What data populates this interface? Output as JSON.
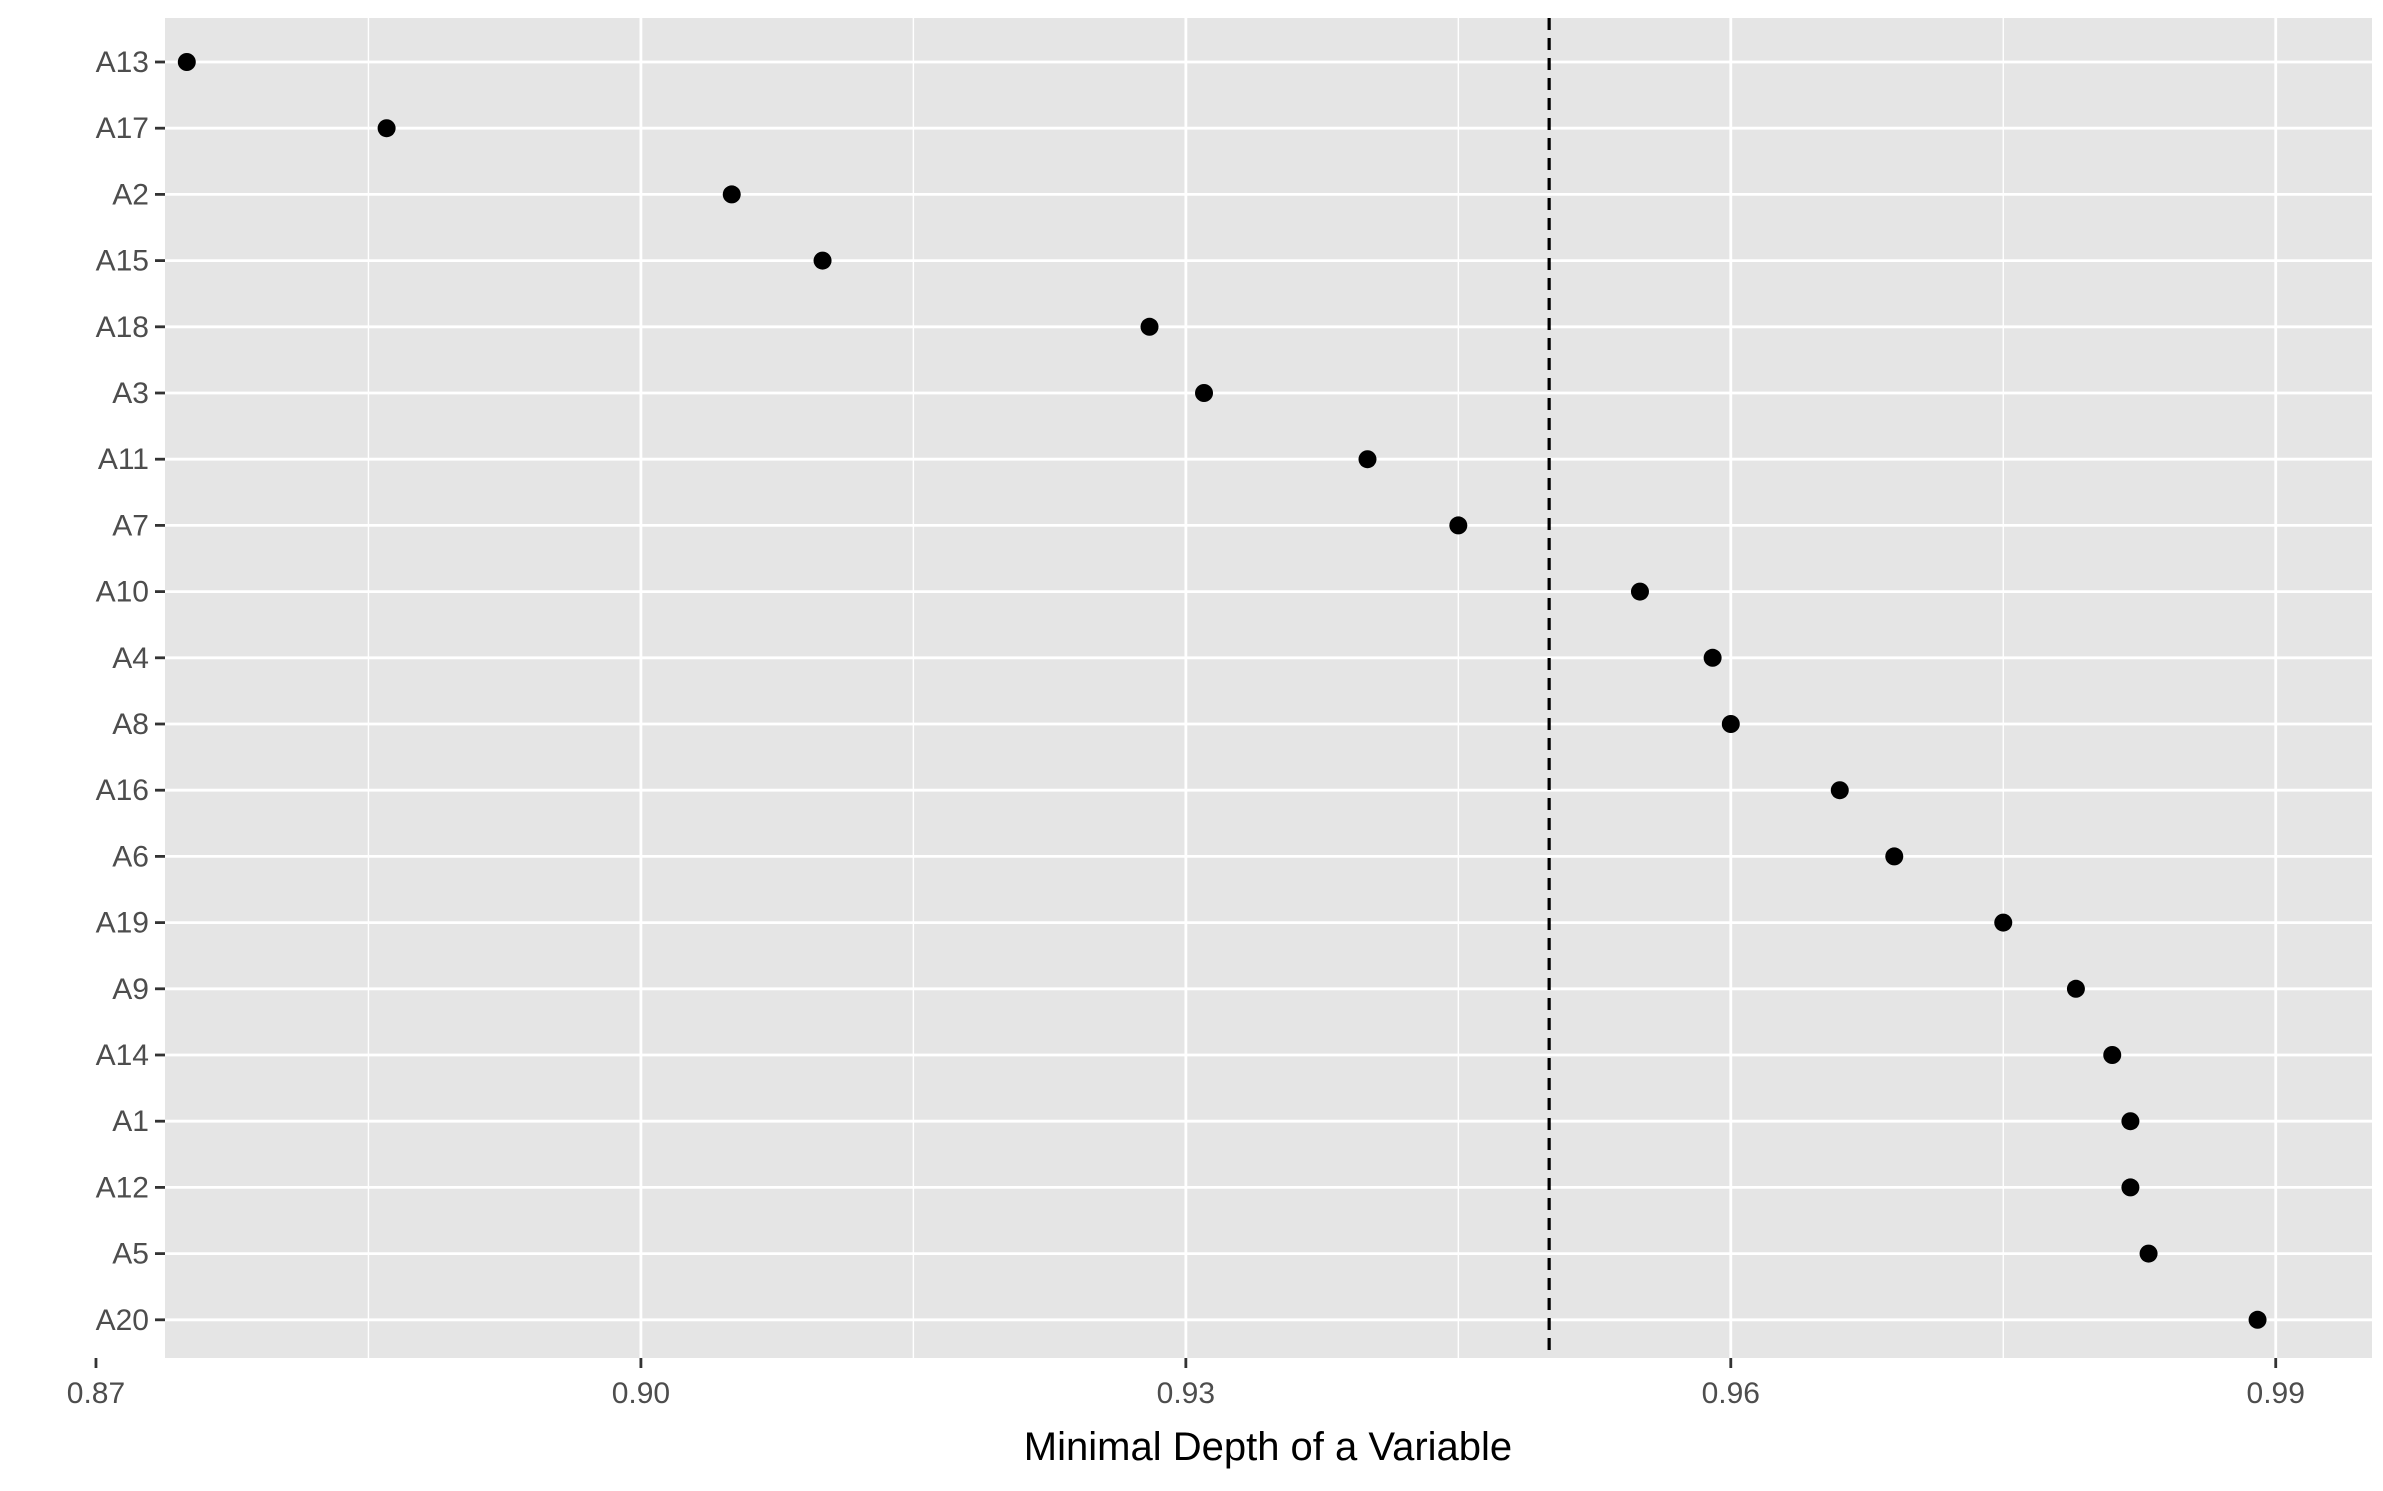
{
  "chart_data": {
    "type": "scatter",
    "title": "",
    "xlabel": "Minimal Depth of a Variable",
    "ylabel": "",
    "xlim": [
      0.8738,
      0.9953
    ],
    "x_ticks": [
      0.87,
      0.9,
      0.93,
      0.96,
      0.99
    ],
    "x_tick_labels": [
      "0.87",
      "0.90",
      "0.93",
      "0.96",
      "0.99"
    ],
    "categories": [
      "A13",
      "A17",
      "A2",
      "A15",
      "A18",
      "A3",
      "A11",
      "A7",
      "A10",
      "A4",
      "A8",
      "A16",
      "A6",
      "A19",
      "A9",
      "A14",
      "A1",
      "A12",
      "A5",
      "A20"
    ],
    "values": [
      0.875,
      0.886,
      0.905,
      0.91,
      0.928,
      0.931,
      0.94,
      0.945,
      0.955,
      0.959,
      0.96,
      0.966,
      0.969,
      0.975,
      0.979,
      0.981,
      0.982,
      0.982,
      0.983,
      0.989
    ],
    "reference_line": {
      "x": 0.95,
      "style": "dashed"
    },
    "grid": true,
    "colors": {
      "panel": "#e5e5e5",
      "grid": "#ffffff",
      "point": "#000000",
      "reference": "#000000"
    }
  }
}
